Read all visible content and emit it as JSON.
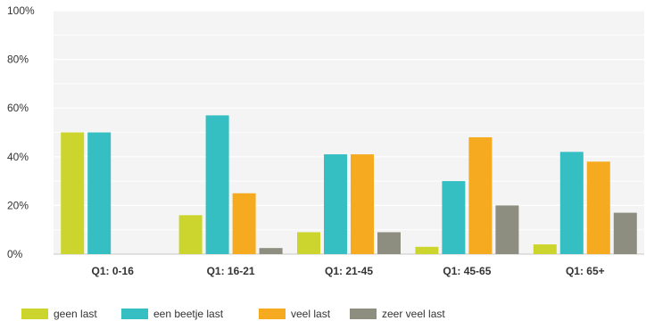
{
  "chart_data": {
    "type": "bar",
    "categories": [
      "Q1: 0-16",
      "Q1: 16-21",
      "Q1: 21-45",
      "Q1: 45-65",
      "Q1: 65+"
    ],
    "series": [
      {
        "name": "geen last",
        "color": "#ccd52e",
        "values": [
          50,
          16,
          9,
          3,
          4
        ]
      },
      {
        "name": "een beetje last",
        "color": "#35bfc2",
        "values": [
          50,
          57,
          41,
          30,
          42
        ]
      },
      {
        "name": "veel last",
        "color": "#f6aa1f",
        "values": [
          0,
          25,
          41,
          48,
          38
        ]
      },
      {
        "name": "zeer veel last",
        "color": "#8d8e80",
        "values": [
          0,
          2.5,
          9,
          20,
          17
        ]
      }
    ],
    "ylim": [
      0,
      100
    ],
    "yticks": [
      0,
      20,
      40,
      60,
      80,
      100
    ],
    "ytick_labels": [
      "0%",
      "20%",
      "40%",
      "60%",
      "80%",
      "100%"
    ],
    "grid": true,
    "legend_position": "bottom-left",
    "background": "#f4f4f4",
    "title": "",
    "xlabel": "",
    "ylabel": ""
  }
}
